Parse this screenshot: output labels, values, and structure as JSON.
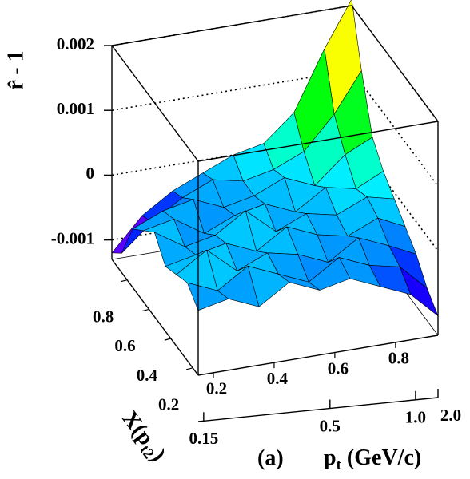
{
  "chart_data": {
    "type": "surface",
    "zlabel": "r̂ - 1",
    "xlabel": {
      "text": "p",
      "sub": "t",
      "unit": " (GeV/c)"
    },
    "ylabel": {
      "text": "X(p",
      "sub": "t2",
      "end": ")"
    },
    "annotation": "(a)",
    "colormap": "rainbow",
    "x": [
      0.15,
      0.25,
      0.35,
      0.45,
      0.55,
      0.65,
      0.75,
      0.85,
      0.94
    ],
    "y": [
      0.15,
      0.25,
      0.35,
      0.45,
      0.55,
      0.65,
      0.75,
      0.85,
      0.94
    ],
    "z": [
      [
        -0.0003,
        -0.0002,
        -0.0004,
        -0.0001,
        -0.0003,
        -0.0002,
        -0.0004,
        -0.0006,
        -0.001
      ],
      [
        -0.0001,
        -0.0003,
        0,
        -0.0002,
        -0.0004,
        -0.0001,
        -0.0003,
        -0.0004,
        -0.0008
      ],
      [
        -0.0002,
        0.0001,
        -0.0003,
        -0.0001,
        -0.0002,
        -0.0004,
        -0.0001,
        -0.0003,
        -0.0005
      ],
      [
        -0.0003,
        -0.0002,
        -0.0001,
        -0.0003,
        0,
        -0.0002,
        -0.0003,
        -0.0001,
        -0.0003
      ],
      [
        0,
        -0.0003,
        -0.0002,
        0.0001,
        -0.0003,
        -0.0001,
        -0.0002,
        0,
        -0.0001
      ],
      [
        -0.0002,
        -0.0001,
        -0.0004,
        -0.0002,
        -0.0001,
        -0.0003,
        0,
        -0.0001,
        0.0001
      ],
      [
        -0.0004,
        -0.0002,
        -0.0001,
        -0.0003,
        -0.0002,
        0,
        -0.0002,
        0.0002,
        0.0004
      ],
      [
        -0.001,
        -0.0006,
        -0.0003,
        -0.0001,
        -0.0002,
        -0.0001,
        0.0001,
        0.0006,
        0.0012
      ],
      [
        -0.0012,
        -0.0007,
        -0.0004,
        -0.0002,
        0,
        0.0001,
        0.0005,
        0.0014,
        0.0021
      ]
    ],
    "xlim": [
      0.15,
      0.94
    ],
    "ylim": [
      0.15,
      0.94
    ],
    "zlim": [
      -0.0013,
      0.002
    ],
    "xticks": [
      0.2,
      0.4,
      0.6,
      0.8
    ],
    "yticks": [
      0.2,
      0.4,
      0.6,
      0.8
    ],
    "zticks": [
      0.002,
      0.001,
      0,
      -0.001
    ],
    "x2ticks": [
      0.15,
      0.5,
      {
        "value": 1,
        "label": "1.0"
      },
      {
        "value": 2,
        "label": "2.0"
      }
    ],
    "x2_tick_x": [
      0.168,
      0.584,
      0.866,
      0.94
    ],
    "grid": true
  }
}
